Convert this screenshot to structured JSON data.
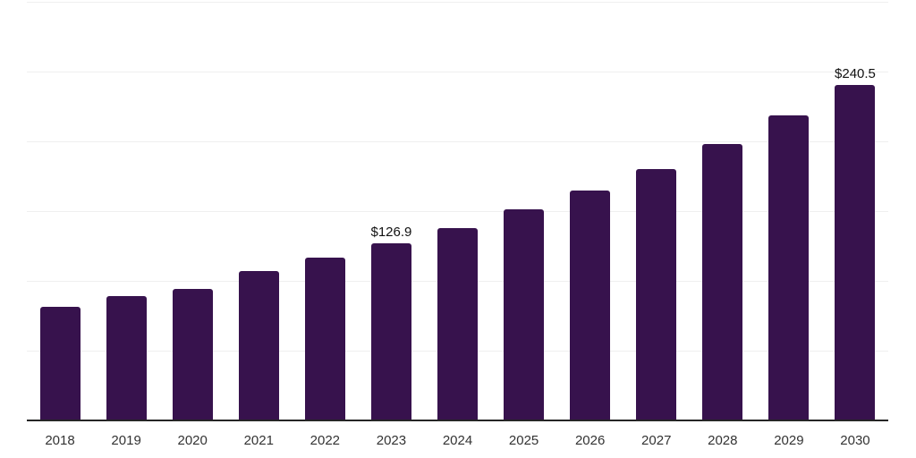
{
  "chart_data": {
    "type": "bar",
    "title": "",
    "xlabel": "",
    "ylabel": "",
    "categories": [
      "2018",
      "2019",
      "2020",
      "2021",
      "2022",
      "2023",
      "2024",
      "2025",
      "2026",
      "2027",
      "2028",
      "2029",
      "2030"
    ],
    "values": [
      81.3,
      89.2,
      94.1,
      107.1,
      116.5,
      126.9,
      137.9,
      151.4,
      164.6,
      180.2,
      198.3,
      218.5,
      240.5
    ],
    "data_labels": [
      "",
      "",
      "",
      "",
      "",
      "$126.9",
      "",
      "",
      "",
      "",
      "",
      "",
      "$240.5"
    ],
    "ylim": [
      0,
      300
    ],
    "gridline_step": 50,
    "grid": true,
    "legend_position": "none",
    "y_tick_labels_visible": false,
    "colors": {
      "bar": "#37124D",
      "gridline": "#efefef",
      "axis_line": "#262626",
      "x_tick_label": "#333333",
      "value_label": "#111111",
      "background": "#ffffff"
    }
  }
}
